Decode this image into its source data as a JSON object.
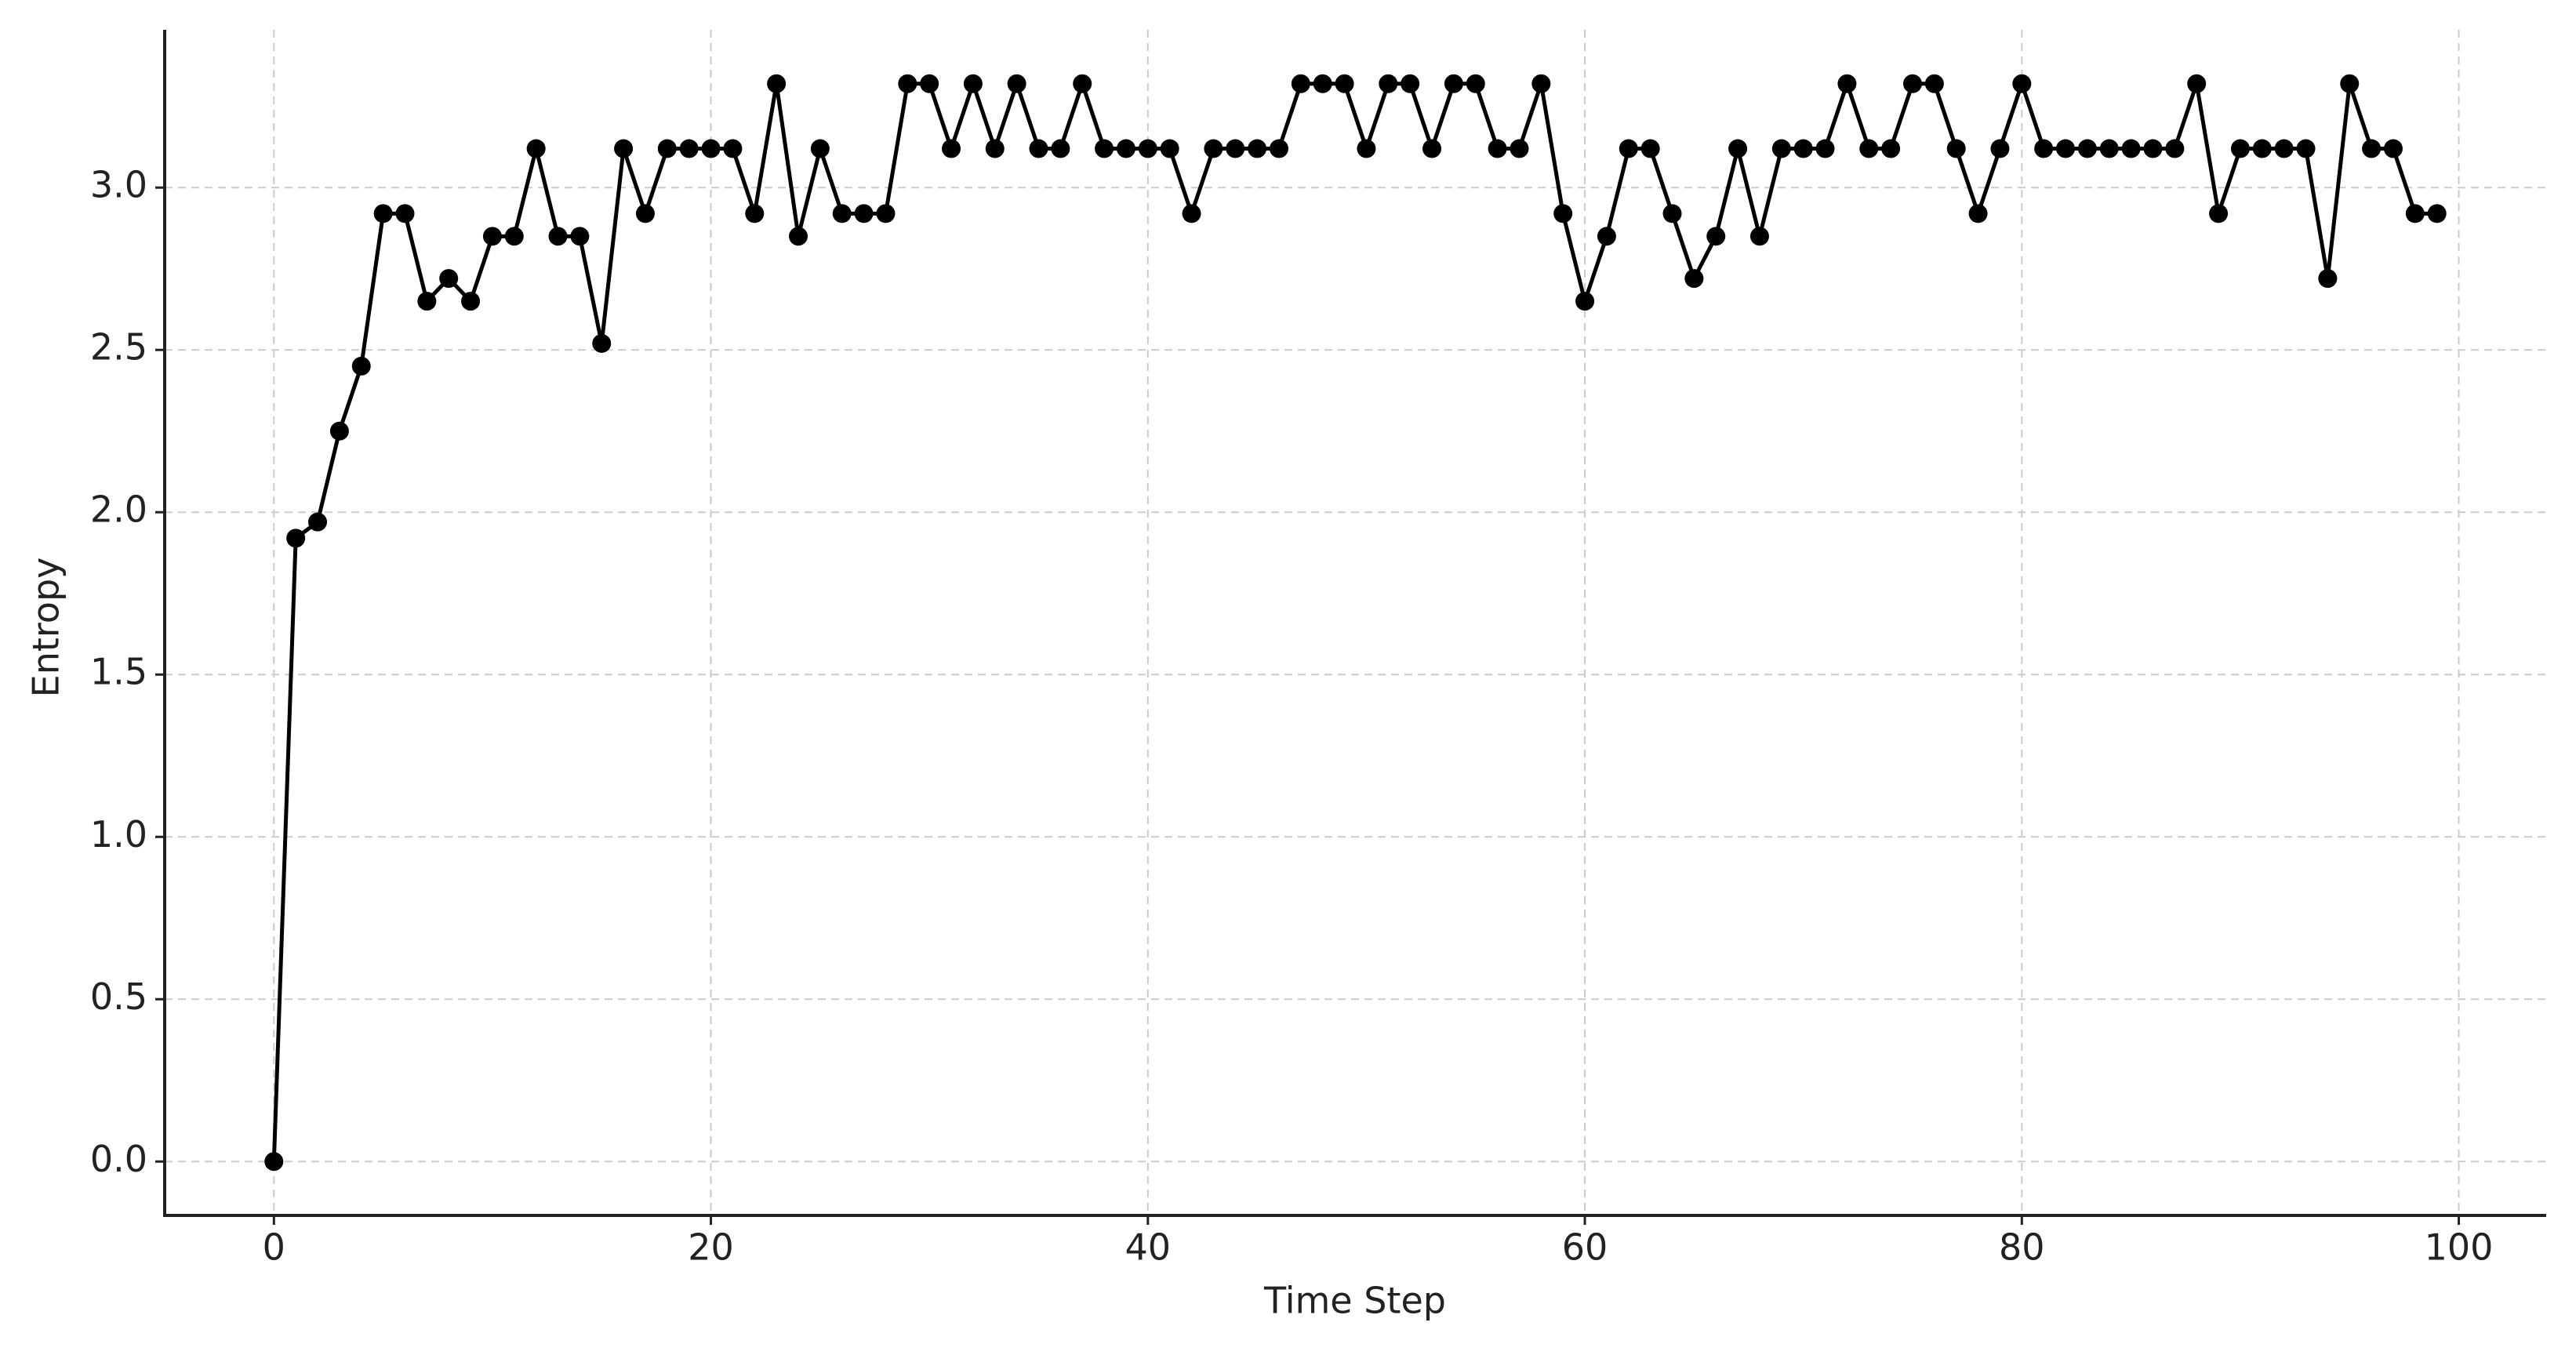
{
  "chart_data": {
    "type": "line",
    "x_label": "Time Step",
    "y_label": "Entropy",
    "x": [
      0,
      1,
      2,
      3,
      4,
      5,
      6,
      7,
      8,
      9,
      10,
      11,
      12,
      13,
      14,
      15,
      16,
      17,
      18,
      19,
      20,
      21,
      22,
      23,
      24,
      25,
      26,
      27,
      28,
      29,
      30,
      31,
      32,
      33,
      34,
      35,
      36,
      37,
      38,
      39,
      40,
      41,
      42,
      43,
      44,
      45,
      46,
      47,
      48,
      49,
      50,
      51,
      52,
      53,
      54,
      55,
      56,
      57,
      58,
      59,
      60,
      61,
      62,
      63,
      64,
      65,
      66,
      67,
      68,
      69,
      70,
      71,
      72,
      73,
      74,
      75,
      76,
      77,
      78,
      79,
      80,
      81,
      82,
      83,
      84,
      85,
      86,
      87,
      88,
      89,
      90,
      91,
      92,
      93,
      94,
      95,
      96,
      97,
      98,
      99
    ],
    "values": [
      0.0,
      1.92,
      1.97,
      2.25,
      2.45,
      2.92,
      2.92,
      2.65,
      2.72,
      2.65,
      2.85,
      2.85,
      3.12,
      2.85,
      2.85,
      2.52,
      3.12,
      2.92,
      3.12,
      3.12,
      3.12,
      3.12,
      2.92,
      3.32,
      2.85,
      3.12,
      2.92,
      2.92,
      2.92,
      3.32,
      3.32,
      3.12,
      3.32,
      3.12,
      3.32,
      3.12,
      3.12,
      3.32,
      3.12,
      3.12,
      3.12,
      3.12,
      2.92,
      3.12,
      3.12,
      3.12,
      3.12,
      3.32,
      3.32,
      3.32,
      3.12,
      3.32,
      3.32,
      3.12,
      3.32,
      3.32,
      3.12,
      3.12,
      3.32,
      2.92,
      2.65,
      2.85,
      3.12,
      3.12,
      2.92,
      2.72,
      2.85,
      3.12,
      2.85,
      3.12,
      3.12,
      3.12,
      3.32,
      3.12,
      3.12,
      3.32,
      3.32,
      3.12,
      2.92,
      3.12,
      3.32,
      3.12,
      3.12,
      3.12,
      3.12,
      3.12,
      3.12,
      3.12,
      3.32,
      2.92,
      3.12,
      3.12,
      3.12,
      3.12,
      2.72,
      3.32,
      3.12,
      3.12,
      2.92,
      2.92
    ],
    "color": "#000000",
    "markers": true,
    "xlim": [
      -5,
      104
    ],
    "ylim": [
      -0.166,
      3.486
    ],
    "xticks": [
      0,
      20,
      40,
      60,
      80,
      100
    ],
    "yticks": [
      {
        "value": 0,
        "label": "0.0"
      },
      0.5,
      {
        "value": 1,
        "label": "1.0"
      },
      1.5,
      {
        "value": 2,
        "label": "2.0"
      },
      2.5,
      {
        "value": 3,
        "label": "3.0"
      }
    ],
    "grid": true
  }
}
